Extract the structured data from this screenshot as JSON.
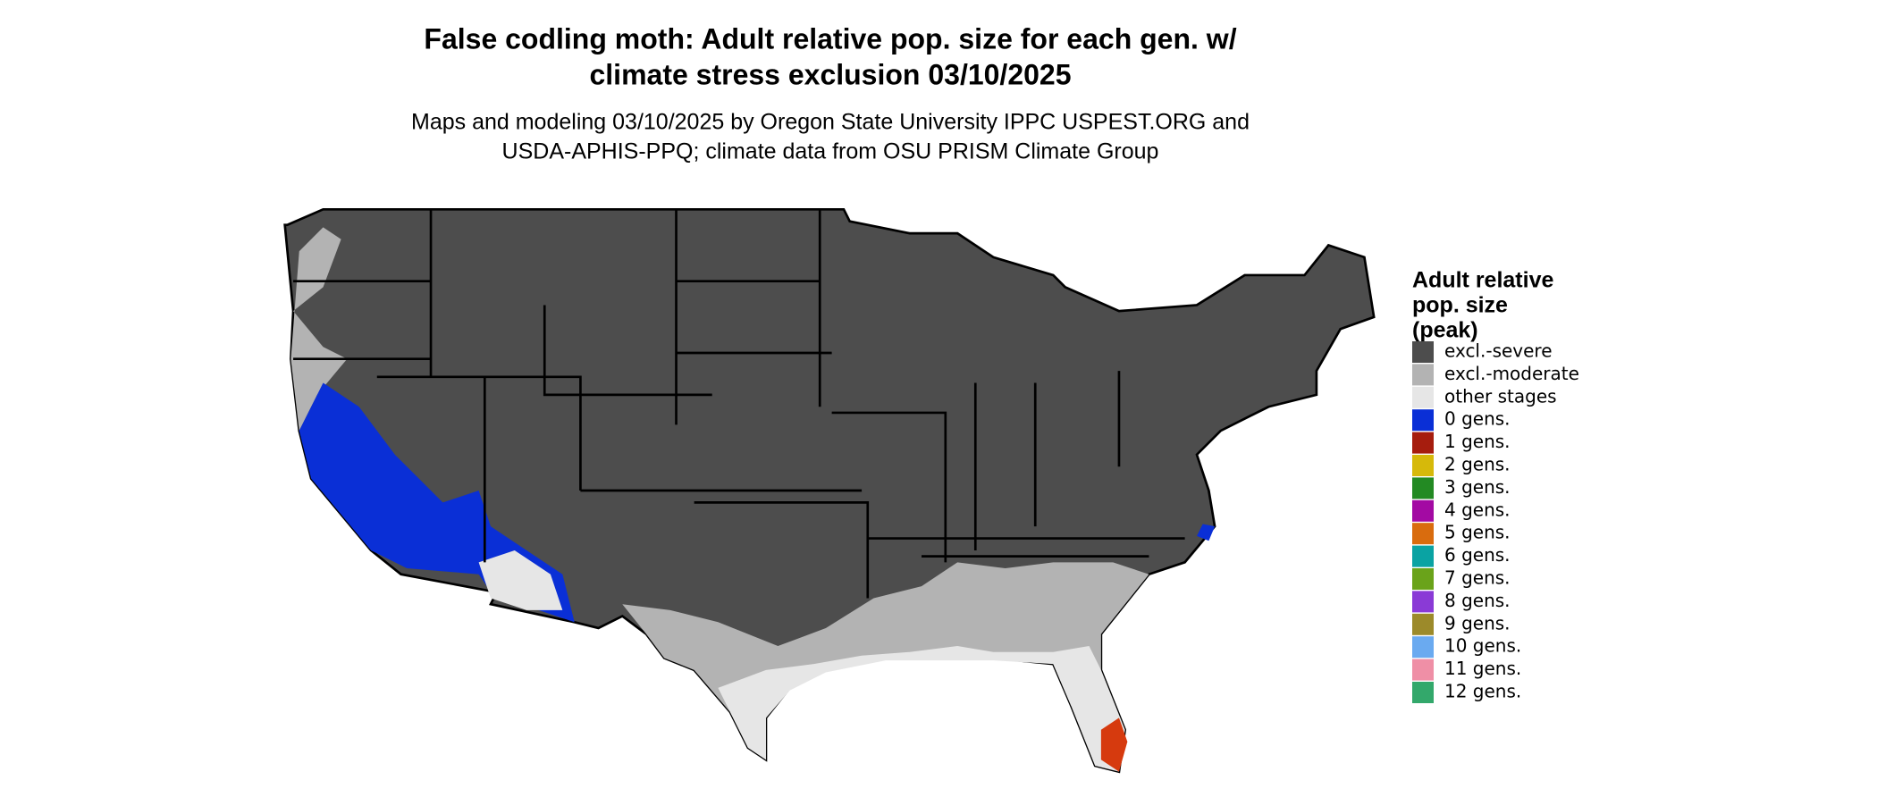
{
  "header": {
    "title": [
      "False codling moth: Adult relative pop. size for each gen. w/",
      "climate stress exclusion 03/10/2025"
    ],
    "subtitle": [
      "Maps and modeling 03/10/2025 by Oregon State University IPPC USPEST.ORG and",
      "USDA-APHIS-PPQ; climate data from OSU PRISM Climate Group"
    ]
  },
  "legend": {
    "title": [
      "Adult relative",
      "pop. size",
      "(peak)"
    ],
    "items": [
      {
        "label": "excl.-severe",
        "color": "#4d4d4d"
      },
      {
        "label": "excl.-moderate",
        "color": "#b3b3b3"
      },
      {
        "label": "other stages",
        "color": "#e6e6e6"
      },
      {
        "label": "0 gens.",
        "color": "#0a2fd6"
      },
      {
        "label": "1 gens.",
        "color": "#a61d0e"
      },
      {
        "label": "2 gens.",
        "color": "#d6b90a"
      },
      {
        "label": "3 gens.",
        "color": "#238a23"
      },
      {
        "label": "4 gens.",
        "color": "#a30aa3"
      },
      {
        "label": "5 gens.",
        "color": "#d96c0e"
      },
      {
        "label": "6 gens.",
        "color": "#0aa3a3"
      },
      {
        "label": "7 gens.",
        "color": "#6aa31a"
      },
      {
        "label": "8 gens.",
        "color": "#8a3ad6"
      },
      {
        "label": "9 gens.",
        "color": "#9c8a2a"
      },
      {
        "label": "10 gens.",
        "color": "#6aaaf0"
      },
      {
        "label": "11 gens.",
        "color": "#ef8fa6"
      },
      {
        "label": "12 gens.",
        "color": "#33a86b"
      }
    ]
  }
}
